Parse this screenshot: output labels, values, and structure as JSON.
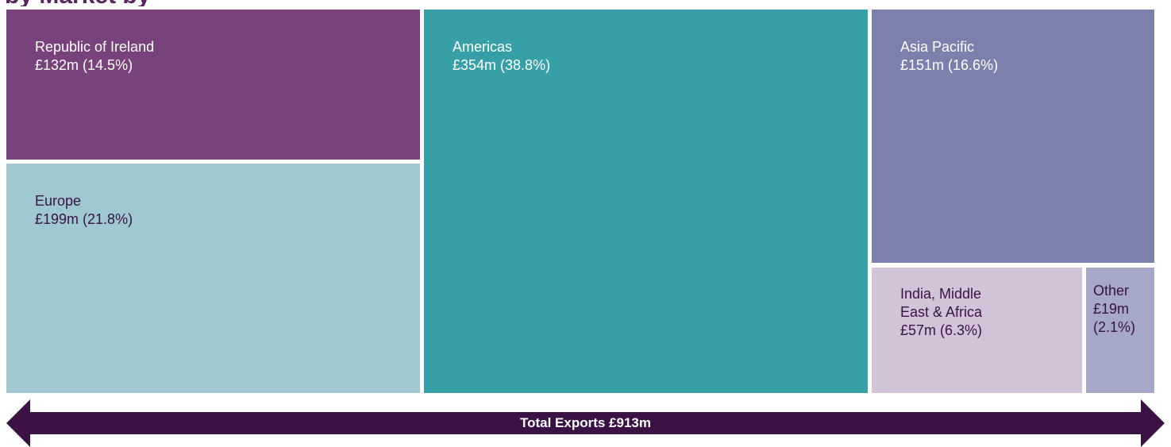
{
  "heading": "by Market by",
  "chart_data": {
    "type": "treemap",
    "total_label": "Total Exports £913m",
    "total_value": 913,
    "unit": "£m",
    "items": [
      {
        "key": "roi",
        "name": "Republic of Ireland",
        "value": 132,
        "share": 14.5,
        "value_label": "£132m (14.5%)",
        "color": "#78427a",
        "text_color": "#ffffff"
      },
      {
        "key": "europe",
        "name": "Europe",
        "value": 199,
        "share": 21.8,
        "value_label": "£199m (21.8%)",
        "color": "#9fc8cf",
        "text_color": "#3a1244"
      },
      {
        "key": "americas",
        "name": "Americas",
        "value": 354,
        "share": 38.8,
        "value_label": "£354m (38.8%)",
        "color": "#36a0a6",
        "text_color": "#ffffff"
      },
      {
        "key": "apac",
        "name": "Asia Pacific",
        "value": 151,
        "share": 16.6,
        "value_label": "£151m (16.6%)",
        "color": "#7b80ad",
        "text_color": "#ffffff"
      },
      {
        "key": "imea",
        "name": "India, Middle East & Africa",
        "value": 57,
        "share": 6.3,
        "value_label": "£57m (6.3%)",
        "color": "#d2c3d9",
        "text_color": "#3a1244"
      },
      {
        "key": "other",
        "name": "Other",
        "value": 19,
        "share": 2.1,
        "value_label": "£19m (2.1%)",
        "color": "#a6a8c9",
        "text_color": "#3a1244"
      }
    ]
  },
  "colors": {
    "arrow": "#3a1244",
    "title": "#5b2461"
  }
}
